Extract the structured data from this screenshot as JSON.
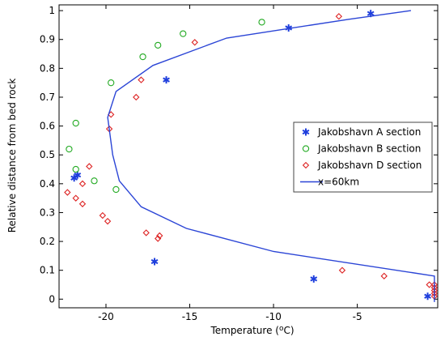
{
  "chart_data": {
    "type": "scatter",
    "xlabel": "Temperature (",
    "xlabel_sup": "o",
    "xlabel_unit": "C)",
    "ylabel": "Relative distance from bed rock",
    "xlim": [
      -22.8,
      -0.2
    ],
    "ylim": [
      -0.03,
      1.02
    ],
    "x_ticks": [
      -20,
      -15,
      -10,
      -5
    ],
    "y_ticks": [
      0,
      0.1,
      0.2,
      0.3,
      0.4,
      0.5,
      0.6,
      0.7,
      0.8,
      0.9,
      1
    ],
    "grid": false,
    "legend_position": "right",
    "series": [
      {
        "name": "Jakobshavn A section",
        "marker": "asterisk",
        "color": "#1f3fdd",
        "points": [
          [
            -21.9,
            0.42
          ],
          [
            -21.7,
            0.43
          ],
          [
            -17.1,
            0.13
          ],
          [
            -16.4,
            0.76
          ],
          [
            -9.1,
            0.94
          ],
          [
            -4.2,
            0.99
          ],
          [
            -7.6,
            0.07
          ],
          [
            -0.8,
            0.01
          ]
        ]
      },
      {
        "name": "Jakobshavn B section",
        "marker": "circle",
        "color": "#22aa22",
        "points": [
          [
            -10.7,
            0.96
          ],
          [
            -15.4,
            0.92
          ],
          [
            -16.9,
            0.88
          ],
          [
            -17.8,
            0.84
          ],
          [
            -19.7,
            0.75
          ],
          [
            -21.8,
            0.61
          ],
          [
            -22.2,
            0.52
          ],
          [
            -21.8,
            0.45
          ],
          [
            -20.7,
            0.41
          ],
          [
            -19.4,
            0.38
          ]
        ]
      },
      {
        "name": "Jakobshavn D section",
        "marker": "diamond",
        "color": "#dd2222",
        "points": [
          [
            -6.1,
            0.98
          ],
          [
            -14.7,
            0.89
          ],
          [
            -17.9,
            0.76
          ],
          [
            -18.2,
            0.7
          ],
          [
            -19.7,
            0.64
          ],
          [
            -19.8,
            0.59
          ],
          [
            -21.0,
            0.46
          ],
          [
            -21.4,
            0.4
          ],
          [
            -22.3,
            0.37
          ],
          [
            -21.8,
            0.35
          ],
          [
            -21.4,
            0.33
          ],
          [
            -20.2,
            0.29
          ],
          [
            -19.9,
            0.27
          ],
          [
            -17.6,
            0.23
          ],
          [
            -16.8,
            0.22
          ],
          [
            -16.9,
            0.21
          ],
          [
            -5.9,
            0.1
          ],
          [
            -3.4,
            0.08
          ],
          [
            -0.7,
            0.05
          ],
          [
            -0.4,
            0.05
          ],
          [
            -0.4,
            0.04
          ],
          [
            -0.4,
            0.03
          ],
          [
            -0.4,
            0.02
          ],
          [
            -0.4,
            0.01
          ]
        ]
      },
      {
        "name": "x=60km",
        "marker": "line",
        "color": "#2b45d6",
        "points": [
          [
            -0.4,
            -0.01
          ],
          [
            -0.4,
            0.08
          ],
          [
            -10.0,
            0.165
          ],
          [
            -15.2,
            0.245
          ],
          [
            -17.9,
            0.32
          ],
          [
            -19.2,
            0.41
          ],
          [
            -19.6,
            0.5
          ],
          [
            -19.9,
            0.63
          ],
          [
            -19.4,
            0.72
          ],
          [
            -17.2,
            0.81
          ],
          [
            -12.8,
            0.905
          ],
          [
            -5.5,
            0.97
          ],
          [
            -1.8,
            1.0
          ]
        ]
      }
    ]
  }
}
